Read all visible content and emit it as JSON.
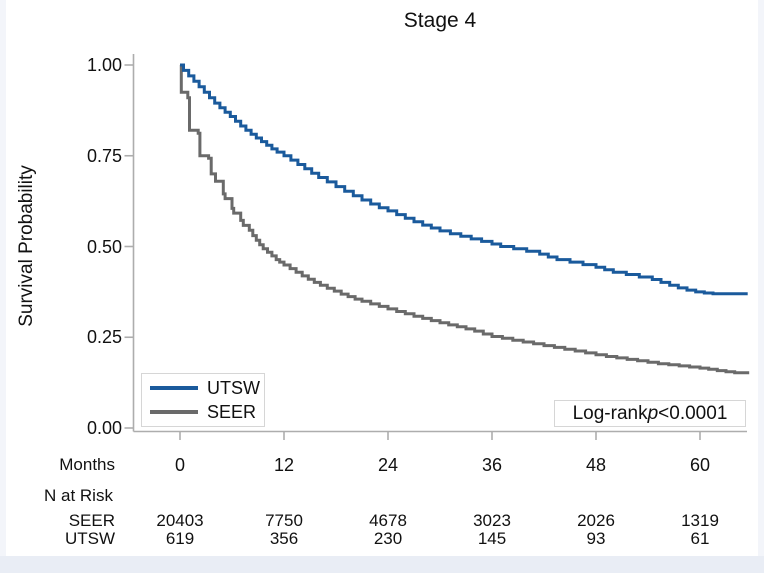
{
  "chart_data": {
    "type": "line",
    "subtype": "kaplan-meier-step",
    "title": "Stage 4",
    "ylabel": "Survival Probability",
    "xlabel": "Months",
    "yticks": [
      "1.00",
      "0.75",
      "0.50",
      "0.25",
      "0.00"
    ],
    "xticks": [
      "0",
      "12",
      "24",
      "36",
      "48",
      "60"
    ],
    "xlim": [
      0,
      65.5
    ],
    "ylim": [
      0.0,
      1.0
    ],
    "grid": false,
    "legend_position": "lower-left",
    "axis_color": "#adadad",
    "text_color": "#111111",
    "series": [
      {
        "name": "UTSW",
        "color": "#1a5a9c",
        "step_points": [
          [
            0,
            1.0
          ],
          [
            0.4,
            0.985
          ],
          [
            1.0,
            0.97
          ],
          [
            1.6,
            0.955
          ],
          [
            2.2,
            0.94
          ],
          [
            2.8,
            0.925
          ],
          [
            3.4,
            0.91
          ],
          [
            4.0,
            0.895
          ],
          [
            4.6,
            0.882
          ],
          [
            5.2,
            0.87
          ],
          [
            5.8,
            0.858
          ],
          [
            6.4,
            0.845
          ],
          [
            7.0,
            0.832
          ],
          [
            7.6,
            0.82
          ],
          [
            8.2,
            0.809
          ],
          [
            8.8,
            0.799
          ],
          [
            9.4,
            0.789
          ],
          [
            10.0,
            0.779
          ],
          [
            10.6,
            0.769
          ],
          [
            11.2,
            0.76
          ],
          [
            12.0,
            0.75
          ],
          [
            12.8,
            0.738
          ],
          [
            13.6,
            0.726
          ],
          [
            14.4,
            0.714
          ],
          [
            15.2,
            0.702
          ],
          [
            16.0,
            0.69
          ],
          [
            17.0,
            0.678
          ],
          [
            18.0,
            0.665
          ],
          [
            19.0,
            0.652
          ],
          [
            20.0,
            0.64
          ],
          [
            21.0,
            0.628
          ],
          [
            22.0,
            0.617
          ],
          [
            23.0,
            0.607
          ],
          [
            24.0,
            0.598
          ],
          [
            25.0,
            0.588
          ],
          [
            26.0,
            0.578
          ],
          [
            27.0,
            0.568
          ],
          [
            28.0,
            0.559
          ],
          [
            29.0,
            0.551
          ],
          [
            30.0,
            0.543
          ],
          [
            31.2,
            0.535
          ],
          [
            32.4,
            0.528
          ],
          [
            33.6,
            0.521
          ],
          [
            34.8,
            0.514
          ],
          [
            36.0,
            0.507
          ],
          [
            37.0,
            0.5
          ],
          [
            38.5,
            0.494
          ],
          [
            40.0,
            0.487
          ],
          [
            41.5,
            0.479
          ],
          [
            42.5,
            0.471
          ],
          [
            43.5,
            0.464
          ],
          [
            45.0,
            0.457
          ],
          [
            46.5,
            0.45
          ],
          [
            48.0,
            0.443
          ],
          [
            49.0,
            0.436
          ],
          [
            50.0,
            0.429
          ],
          [
            51.5,
            0.423
          ],
          [
            53.0,
            0.416
          ],
          [
            54.5,
            0.409
          ],
          [
            55.5,
            0.401
          ],
          [
            56.5,
            0.393
          ],
          [
            57.5,
            0.386
          ],
          [
            58.5,
            0.38
          ],
          [
            59.5,
            0.375
          ],
          [
            60.5,
            0.372
          ],
          [
            61.5,
            0.37
          ],
          [
            65.5,
            0.37
          ]
        ]
      },
      {
        "name": "SEER",
        "color": "#6a6a6a",
        "step_points": [
          [
            0,
            1.0
          ],
          [
            0.15,
            0.925
          ],
          [
            0.9,
            0.91
          ],
          [
            1.1,
            0.82
          ],
          [
            2.1,
            0.812
          ],
          [
            2.3,
            0.75
          ],
          [
            3.3,
            0.743
          ],
          [
            3.6,
            0.7
          ],
          [
            4.1,
            0.68
          ],
          [
            5.0,
            0.645
          ],
          [
            5.2,
            0.632
          ],
          [
            6.0,
            0.605
          ],
          [
            6.2,
            0.592
          ],
          [
            7.0,
            0.572
          ],
          [
            7.3,
            0.558
          ],
          [
            8.0,
            0.545
          ],
          [
            8.4,
            0.53
          ],
          [
            8.8,
            0.517
          ],
          [
            9.2,
            0.505
          ],
          [
            9.6,
            0.494
          ],
          [
            10.1,
            0.484
          ],
          [
            10.6,
            0.474
          ],
          [
            11.1,
            0.464
          ],
          [
            11.5,
            0.457
          ],
          [
            12.0,
            0.449
          ],
          [
            12.7,
            0.439
          ],
          [
            13.4,
            0.429
          ],
          [
            14.1,
            0.419
          ],
          [
            14.8,
            0.41
          ],
          [
            15.5,
            0.401
          ],
          [
            16.2,
            0.393
          ],
          [
            17.0,
            0.385
          ],
          [
            17.8,
            0.377
          ],
          [
            18.6,
            0.369
          ],
          [
            19.4,
            0.362
          ],
          [
            20.2,
            0.355
          ],
          [
            21.0,
            0.349
          ],
          [
            22.0,
            0.342
          ],
          [
            23.0,
            0.335
          ],
          [
            24.0,
            0.328
          ],
          [
            25.0,
            0.321
          ],
          [
            26.0,
            0.315
          ],
          [
            27.0,
            0.308
          ],
          [
            28.0,
            0.302
          ],
          [
            29.0,
            0.296
          ],
          [
            30.0,
            0.29
          ],
          [
            31.0,
            0.284
          ],
          [
            32.0,
            0.279
          ],
          [
            33.0,
            0.273
          ],
          [
            34.0,
            0.267
          ],
          [
            35.0,
            0.259
          ],
          [
            36.0,
            0.252
          ],
          [
            37.2,
            0.247
          ],
          [
            38.4,
            0.242
          ],
          [
            39.6,
            0.237
          ],
          [
            40.8,
            0.232
          ],
          [
            42.0,
            0.227
          ],
          [
            43.2,
            0.222
          ],
          [
            44.4,
            0.217
          ],
          [
            45.6,
            0.212
          ],
          [
            46.8,
            0.207
          ],
          [
            48.0,
            0.202
          ],
          [
            49.2,
            0.197
          ],
          [
            50.4,
            0.193
          ],
          [
            51.6,
            0.189
          ],
          [
            52.8,
            0.185
          ],
          [
            54.0,
            0.181
          ],
          [
            55.2,
            0.177
          ],
          [
            56.4,
            0.174
          ],
          [
            57.6,
            0.171
          ],
          [
            58.8,
            0.168
          ],
          [
            60.0,
            0.165
          ],
          [
            61.0,
            0.162
          ],
          [
            62.0,
            0.158
          ],
          [
            63.0,
            0.155
          ],
          [
            64.0,
            0.152
          ],
          [
            65.5,
            0.148
          ]
        ]
      }
    ],
    "legend": {
      "entries": [
        "UTSW",
        "SEER"
      ]
    },
    "annotation": {
      "label": "Log-rank",
      "p_symbol": "p",
      "value": "<0.0001"
    },
    "risk_table": {
      "row_axis_label": "Months",
      "header": "N at Risk",
      "rows": [
        {
          "name": "SEER",
          "values": [
            "20403",
            "7750",
            "4678",
            "3023",
            "2026",
            "1319"
          ]
        },
        {
          "name": "UTSW",
          "values": [
            "619",
            "356",
            "230",
            "145",
            "93",
            "61"
          ]
        }
      ]
    }
  }
}
